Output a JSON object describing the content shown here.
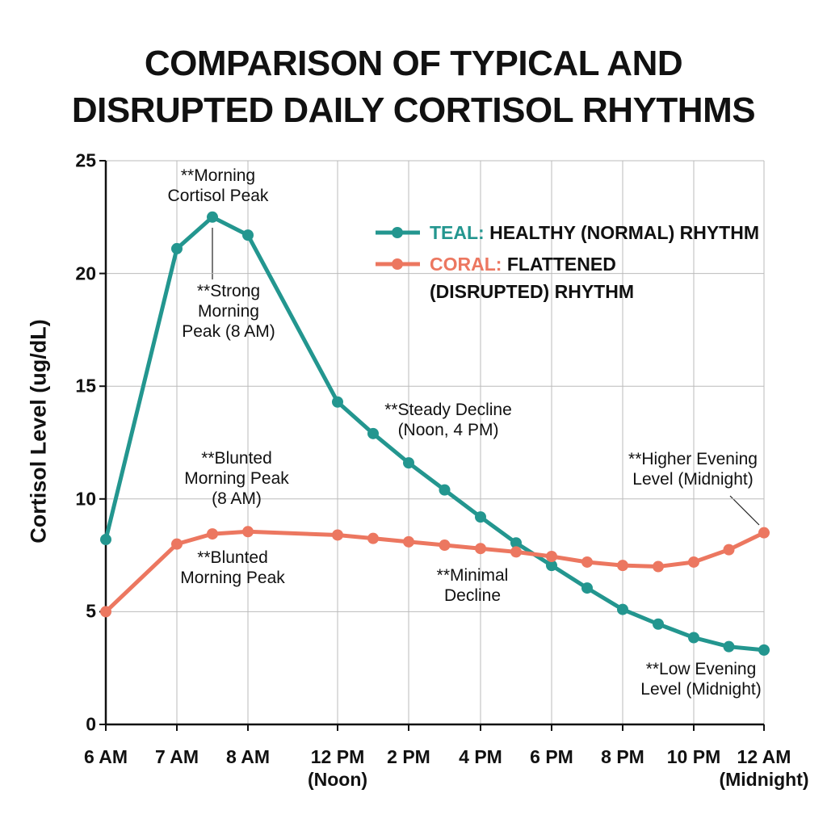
{
  "chart_data": {
    "type": "line",
    "title": "COMPARISON OF TYPICAL AND\nDISRUPTED DAILY CORTISOL RHYTHMS",
    "y_label": "Cortisol Level (ug/dL)",
    "x": [
      6,
      7,
      7.5,
      8,
      12,
      13,
      14,
      15,
      16,
      17,
      18,
      19,
      20,
      21,
      22,
      23,
      24
    ],
    "xlim": [
      6,
      24
    ],
    "xticks": [
      {
        "value": 6,
        "label": "6 AM"
      },
      {
        "value": 7,
        "label": "7 AM"
      },
      {
        "value": 8,
        "label": "8 AM"
      },
      {
        "value": 12,
        "label": "12 PM\n(Noon)"
      },
      {
        "value": 14,
        "label": "2 PM"
      },
      {
        "value": 16,
        "label": "4 PM"
      },
      {
        "value": 18,
        "label": "6 PM"
      },
      {
        "value": 20,
        "label": "8 PM"
      },
      {
        "value": 22,
        "label": "10 PM"
      },
      {
        "value": 24,
        "label": "12 AM\n(Midnight)"
      }
    ],
    "ylim": [
      0,
      25
    ],
    "yticks": [
      0,
      5,
      10,
      15,
      20,
      25
    ],
    "grid": true,
    "series": [
      {
        "name": "TEAL: HEALTHY (NORMAL) RHYTHM",
        "color": "#23968f",
        "values": [
          8.2,
          21.1,
          22.5,
          21.7,
          14.3,
          12.9,
          11.6,
          10.4,
          9.2,
          8.05,
          7.05,
          6.05,
          5.1,
          4.45,
          3.85,
          3.45,
          3.3
        ]
      },
      {
        "name": "CORAL: FLATTENED\n(DISRUPTED) RHYTHM",
        "color": "#ec7760",
        "values": [
          5,
          8,
          8.45,
          8.55,
          8.4,
          8.25,
          8.1,
          7.95,
          7.8,
          7.65,
          7.45,
          7.2,
          7.05,
          7.0,
          7.2,
          7.75,
          8.5
        ]
      }
    ],
    "annotations": [
      "**Morning\nCortisol Peak",
      "**Strong\nMorning\nPeak (8 AM)",
      "**Steady Decline\n(Noon, 4 PM)",
      "**Blunted\nMorning Peak\n(8 AM)",
      "**Blunted\nMorning Peak",
      "**Minimal\nDecline",
      "**Higher Evening\nLevel (Midnight)",
      "**Low Evening\nLevel (Midnight)"
    ]
  }
}
